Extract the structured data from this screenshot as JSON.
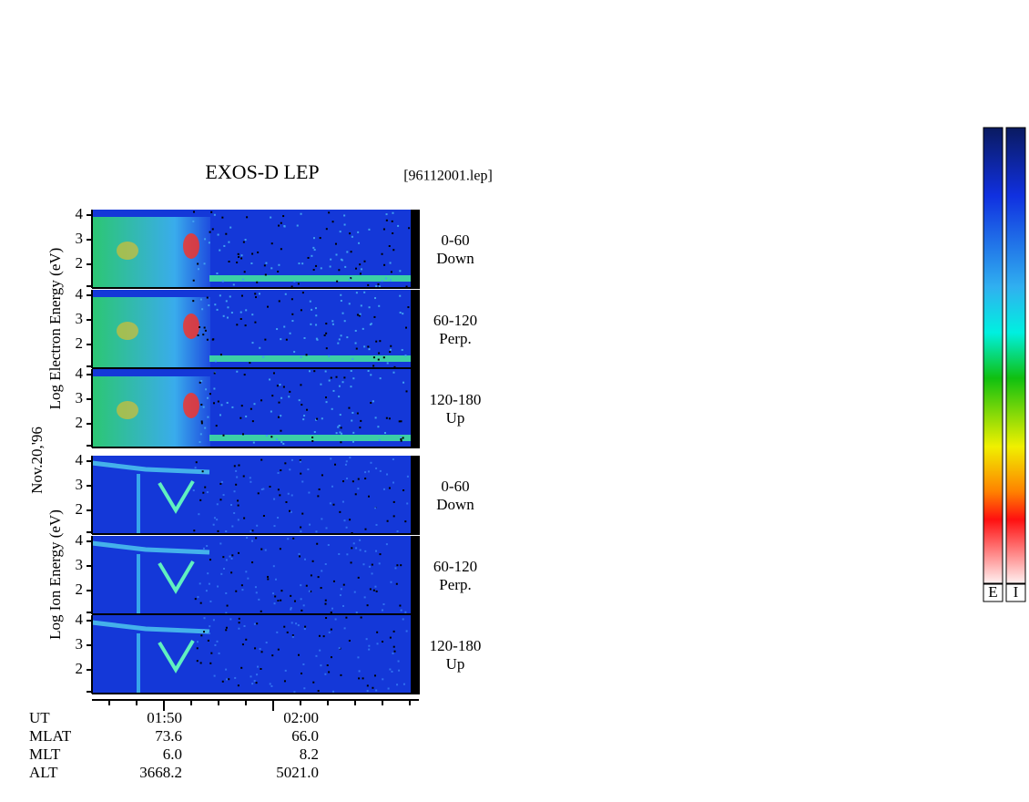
{
  "title": "EXOS-D LEP",
  "file": "[96112001.lep]",
  "date": "Nov.20,'96",
  "groups": [
    {
      "ylabel": "Log Electron Energy (eV)",
      "kind": "electron",
      "panels": [
        {
          "yticks": [
            "4",
            "3",
            "2"
          ],
          "pitch": [
            "0-60",
            "Down"
          ]
        },
        {
          "yticks": [
            "4",
            "3",
            "2"
          ],
          "pitch": [
            "60-120",
            "Perp."
          ]
        },
        {
          "yticks": [
            "4",
            "3",
            "2"
          ],
          "pitch": [
            "120-180",
            "Up"
          ]
        }
      ]
    },
    {
      "ylabel": "Log Ion Energy (eV)",
      "kind": "ion",
      "panels": [
        {
          "yticks": [
            "4",
            "3",
            "2"
          ],
          "pitch": [
            "0-60",
            "Down"
          ]
        },
        {
          "yticks": [
            "4",
            "3",
            "2"
          ],
          "pitch": [
            "60-120",
            "Perp."
          ]
        },
        {
          "yticks": [
            "4",
            "3",
            "2"
          ],
          "pitch": [
            "120-180",
            "Up"
          ]
        }
      ]
    }
  ],
  "footer": [
    {
      "name": "UT",
      "values": [
        "01:50",
        "02:00"
      ]
    },
    {
      "name": "MLAT",
      "values": [
        "73.6",
        "66.0"
      ]
    },
    {
      "name": "MLT",
      "values": [
        "6.0",
        "8.2"
      ]
    },
    {
      "name": "ALT",
      "values": [
        "3668.2",
        "5021.0"
      ]
    }
  ],
  "colorbars": [
    "E",
    "I"
  ]
}
